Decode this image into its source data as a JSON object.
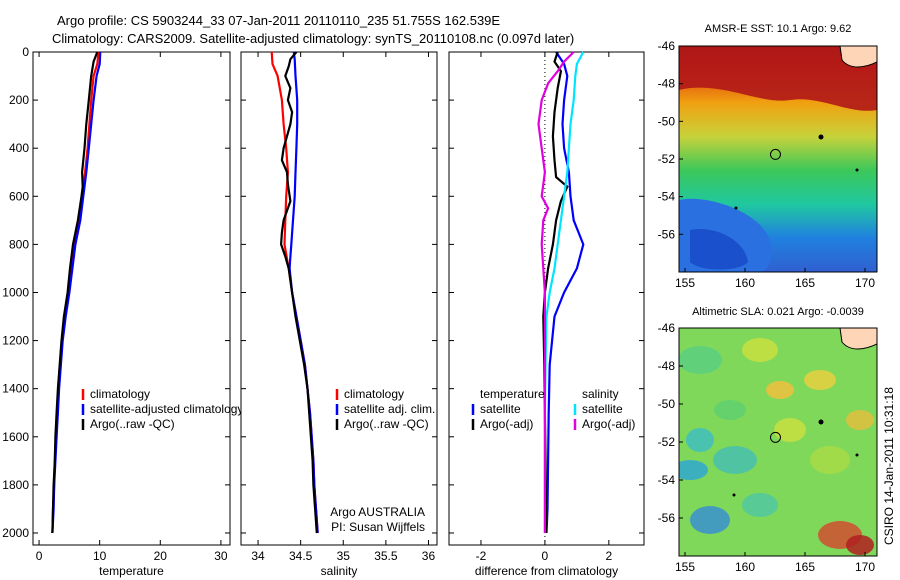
{
  "title": {
    "line1": "Argo profile: CS 5903244_33 07-Jan-2011 20110110_235 51.755S 162.539E",
    "line2": "Climatology: CARS2009. Satellite-adjusted climatology: synTS_20110108.nc (0.097d later)"
  },
  "watermark": "CSIRO 14-Jan-2011 10:31:18",
  "chart_data": [
    {
      "id": "temperature-panel",
      "type": "line",
      "xlabel": "temperature",
      "ylabel": "",
      "xlim": [
        -1,
        31.5
      ],
      "ylim": [
        2050,
        0
      ],
      "x_ticks": [
        0,
        10,
        20,
        30
      ],
      "y_ticks": [
        0,
        200,
        400,
        600,
        800,
        1000,
        1200,
        1400,
        1600,
        1800,
        2000
      ],
      "legend": [
        "climatology",
        "satellite-adjusted climatology",
        "Argo(..raw -QC)"
      ],
      "series": [
        {
          "name": "climatology",
          "color": "#ff0000",
          "points": [
            [
              9.8,
              0
            ],
            [
              9.6,
              50
            ],
            [
              9.0,
              100
            ],
            [
              8.6,
              200
            ],
            [
              8.3,
              300
            ],
            [
              8.0,
              400
            ],
            [
              7.6,
              500
            ],
            [
              7.1,
              600
            ],
            [
              6.6,
              700
            ],
            [
              5.8,
              800
            ],
            [
              5.3,
              900
            ],
            [
              4.8,
              1000
            ],
            [
              4.2,
              1100
            ],
            [
              3.8,
              1200
            ],
            [
              3.5,
              1300
            ],
            [
              3.2,
              1400
            ],
            [
              3.0,
              1500
            ],
            [
              2.8,
              1600
            ],
            [
              2.6,
              1700
            ],
            [
              2.5,
              1800
            ],
            [
              2.3,
              1900
            ],
            [
              2.2,
              2000
            ]
          ]
        },
        {
          "name": "satellite-adjusted climatology",
          "color": "#0000ff",
          "points": [
            [
              10.1,
              0
            ],
            [
              10.0,
              50
            ],
            [
              9.5,
              100
            ],
            [
              9.0,
              200
            ],
            [
              8.6,
              300
            ],
            [
              8.2,
              400
            ],
            [
              7.8,
              500
            ],
            [
              7.3,
              600
            ],
            [
              6.8,
              700
            ],
            [
              6.0,
              800
            ],
            [
              5.5,
              900
            ],
            [
              5.0,
              1000
            ],
            [
              4.4,
              1100
            ],
            [
              3.9,
              1200
            ],
            [
              3.6,
              1300
            ],
            [
              3.3,
              1400
            ],
            [
              3.1,
              1500
            ],
            [
              2.9,
              1600
            ],
            [
              2.7,
              1700
            ],
            [
              2.5,
              1800
            ],
            [
              2.4,
              1900
            ],
            [
              2.2,
              2000
            ]
          ]
        },
        {
          "name": "Argo(..raw -QC)",
          "color": "#000000",
          "points": [
            [
              9.6,
              0
            ],
            [
              9.0,
              40
            ],
            [
              8.6,
              100
            ],
            [
              8.2,
              200
            ],
            [
              7.8,
              300
            ],
            [
              7.5,
              400
            ],
            [
              7.1,
              500
            ],
            [
              7.2,
              560
            ],
            [
              7.0,
              600
            ],
            [
              6.4,
              700
            ],
            [
              5.6,
              800
            ],
            [
              5.1,
              900
            ],
            [
              4.7,
              1000
            ],
            [
              4.1,
              1100
            ],
            [
              3.7,
              1200
            ],
            [
              3.4,
              1300
            ],
            [
              3.1,
              1400
            ],
            [
              2.9,
              1500
            ],
            [
              2.7,
              1600
            ],
            [
              2.6,
              1700
            ],
            [
              2.4,
              1800
            ],
            [
              2.3,
              1900
            ],
            [
              2.2,
              2000
            ]
          ]
        }
      ]
    },
    {
      "id": "salinity-panel",
      "type": "line",
      "xlabel": "salinity",
      "ylabel": "",
      "xlim": [
        33.8,
        36.1
      ],
      "ylim": [
        2050,
        0
      ],
      "x_ticks": [
        34,
        34.5,
        35,
        35.5,
        36
      ],
      "legend": [
        "climatology",
        "satellite adj. clim.",
        "Argo(..raw -QC)"
      ],
      "annotation": [
        "Argo AUSTRALIA",
        "PI: Susan Wijffels"
      ],
      "series": [
        {
          "name": "climatology",
          "color": "#ff0000",
          "points": [
            [
              34.16,
              0
            ],
            [
              34.17,
              50
            ],
            [
              34.23,
              100
            ],
            [
              34.28,
              200
            ],
            [
              34.3,
              300
            ],
            [
              34.33,
              400
            ],
            [
              34.35,
              500
            ],
            [
              34.33,
              600
            ],
            [
              34.32,
              700
            ],
            [
              34.31,
              800
            ],
            [
              34.36,
              900
            ],
            [
              34.4,
              1000
            ],
            [
              34.45,
              1100
            ],
            [
              34.5,
              1200
            ],
            [
              34.55,
              1300
            ],
            [
              34.58,
              1400
            ],
            [
              34.61,
              1500
            ],
            [
              34.63,
              1600
            ],
            [
              34.65,
              1700
            ],
            [
              34.66,
              1800
            ],
            [
              34.68,
              1900
            ],
            [
              34.7,
              2000
            ]
          ]
        },
        {
          "name": "satellite adj. clim.",
          "color": "#0000ff",
          "points": [
            [
              34.42,
              0
            ],
            [
              34.43,
              30
            ],
            [
              34.44,
              100
            ],
            [
              34.46,
              200
            ],
            [
              34.46,
              300
            ],
            [
              34.45,
              400
            ],
            [
              34.44,
              500
            ],
            [
              34.43,
              600
            ],
            [
              34.41,
              700
            ],
            [
              34.39,
              800
            ],
            [
              34.38,
              850
            ],
            [
              34.37,
              900
            ],
            [
              34.4,
              1000
            ],
            [
              34.45,
              1100
            ],
            [
              34.5,
              1200
            ],
            [
              34.55,
              1300
            ],
            [
              34.58,
              1400
            ],
            [
              34.61,
              1500
            ],
            [
              34.63,
              1600
            ],
            [
              34.65,
              1700
            ],
            [
              34.66,
              1800
            ],
            [
              34.68,
              1900
            ],
            [
              34.7,
              2000
            ]
          ]
        },
        {
          "name": "Argo(..raw -QC)",
          "color": "#000000",
          "points": [
            [
              34.45,
              0
            ],
            [
              34.38,
              30
            ],
            [
              34.36,
              60
            ],
            [
              34.32,
              100
            ],
            [
              34.38,
              150
            ],
            [
              34.35,
              200
            ],
            [
              34.4,
              250
            ],
            [
              34.38,
              300
            ],
            [
              34.34,
              350
            ],
            [
              34.3,
              400
            ],
            [
              34.28,
              450
            ],
            [
              34.34,
              500
            ],
            [
              34.35,
              550
            ],
            [
              34.38,
              620
            ],
            [
              34.3,
              700
            ],
            [
              34.28,
              750
            ],
            [
              34.27,
              800
            ],
            [
              34.32,
              850
            ],
            [
              34.36,
              900
            ],
            [
              34.4,
              1000
            ],
            [
              34.44,
              1100
            ],
            [
              34.49,
              1200
            ],
            [
              34.54,
              1300
            ],
            [
              34.58,
              1400
            ],
            [
              34.6,
              1500
            ],
            [
              34.62,
              1600
            ],
            [
              34.64,
              1700
            ],
            [
              34.65,
              1800
            ],
            [
              34.67,
              1900
            ],
            [
              34.69,
              2000
            ]
          ]
        }
      ]
    },
    {
      "id": "difference-panel",
      "type": "line",
      "xlabel": "difference from climatology",
      "ylabel": "",
      "xlim": [
        -3,
        3.1
      ],
      "ylim": [
        2050,
        0
      ],
      "x_ticks": [
        -2,
        0,
        2
      ],
      "legend_left_title": "temperature",
      "legend_right_title": "salinity",
      "legend_left": [
        "satellite",
        "Argo(-adj)"
      ],
      "legend_right": [
        "satellite",
        "Argo(-adj)"
      ],
      "series": [
        {
          "name": "temperature satellite",
          "color": "#0000ff",
          "points": [
            [
              0.35,
              0
            ],
            [
              0.6,
              50
            ],
            [
              0.7,
              100
            ],
            [
              0.6,
              200
            ],
            [
              0.55,
              300
            ],
            [
              0.6,
              400
            ],
            [
              0.75,
              500
            ],
            [
              0.8,
              600
            ],
            [
              0.9,
              700
            ],
            [
              1.2,
              800
            ],
            [
              1.0,
              900
            ],
            [
              0.6,
              1000
            ],
            [
              0.3,
              1100
            ],
            [
              0.15,
              1300
            ],
            [
              0.12,
              1500
            ],
            [
              0.1,
              1700
            ],
            [
              0.08,
              1900
            ],
            [
              0.05,
              2000
            ]
          ]
        },
        {
          "name": "temperature Argo(-adj)",
          "color": "#000000",
          "points": [
            [
              0.4,
              0
            ],
            [
              0.3,
              40
            ],
            [
              0.5,
              80
            ],
            [
              0.4,
              150
            ],
            [
              0.3,
              250
            ],
            [
              0.25,
              350
            ],
            [
              0.3,
              450
            ],
            [
              0.35,
              520
            ],
            [
              0.7,
              560
            ],
            [
              0.5,
              620
            ],
            [
              0.35,
              700
            ],
            [
              0.3,
              750
            ],
            [
              0.25,
              800
            ],
            [
              0.1,
              900
            ],
            [
              0.0,
              1000
            ],
            [
              -0.05,
              1100
            ],
            [
              -0.02,
              1300
            ],
            [
              0.0,
              1500
            ],
            [
              0.02,
              1700
            ],
            [
              0.03,
              1900
            ],
            [
              0.04,
              2000
            ]
          ]
        },
        {
          "name": "salinity satellite",
          "color": "#00e5ff",
          "points": [
            [
              1.2,
              0
            ],
            [
              1.0,
              50
            ],
            [
              0.95,
              100
            ],
            [
              0.9,
              200
            ],
            [
              0.8,
              300
            ],
            [
              0.75,
              400
            ],
            [
              0.7,
              500
            ],
            [
              0.6,
              600
            ],
            [
              0.5,
              700
            ],
            [
              0.4,
              800
            ],
            [
              0.3,
              900
            ],
            [
              0.15,
              1000
            ],
            [
              0.05,
              1100
            ],
            [
              0.02,
              1300
            ],
            [
              0.0,
              1500
            ],
            [
              0.0,
              1700
            ],
            [
              0.0,
              1900
            ],
            [
              0.0,
              2000
            ]
          ]
        },
        {
          "name": "salinity Argo(-adj)",
          "color": "#e000e0",
          "points": [
            [
              0.9,
              0
            ],
            [
              0.6,
              40
            ],
            [
              0.4,
              80
            ],
            [
              0.1,
              130
            ],
            [
              -0.1,
              200
            ],
            [
              -0.2,
              300
            ],
            [
              -0.1,
              400
            ],
            [
              0.0,
              500
            ],
            [
              -0.1,
              600
            ],
            [
              0.1,
              650
            ],
            [
              -0.05,
              700
            ],
            [
              -0.1,
              800
            ],
            [
              -0.05,
              900
            ],
            [
              0.0,
              1000
            ],
            [
              0.0,
              1100
            ],
            [
              0.0,
              1300
            ],
            [
              0.0,
              1500
            ],
            [
              0.0,
              1700
            ],
            [
              0.0,
              1900
            ],
            [
              0.0,
              2000
            ]
          ]
        }
      ]
    },
    {
      "id": "sst-map",
      "type": "heatmap",
      "title": "AMSR-E SST: 10.1  Argo: 9.62",
      "xlim": [
        154.5,
        171
      ],
      "ylim": [
        -58,
        -46
      ],
      "x_ticks": [
        155,
        160,
        165,
        170
      ],
      "y_ticks": [
        -46,
        -48,
        -50,
        -52,
        -54,
        -56
      ],
      "argo_position": [
        162.539,
        -51.755
      ]
    },
    {
      "id": "sla-map",
      "type": "heatmap",
      "title": "Altimetric SLA: 0.021  Argo: -0.0039",
      "xlim": [
        154.5,
        171
      ],
      "ylim": [
        -58,
        -46
      ],
      "x_ticks": [
        155,
        160,
        165,
        170
      ],
      "y_ticks": [
        -46,
        -48,
        -50,
        -52,
        -54,
        -56
      ],
      "argo_position": [
        162.539,
        -51.755
      ]
    }
  ]
}
